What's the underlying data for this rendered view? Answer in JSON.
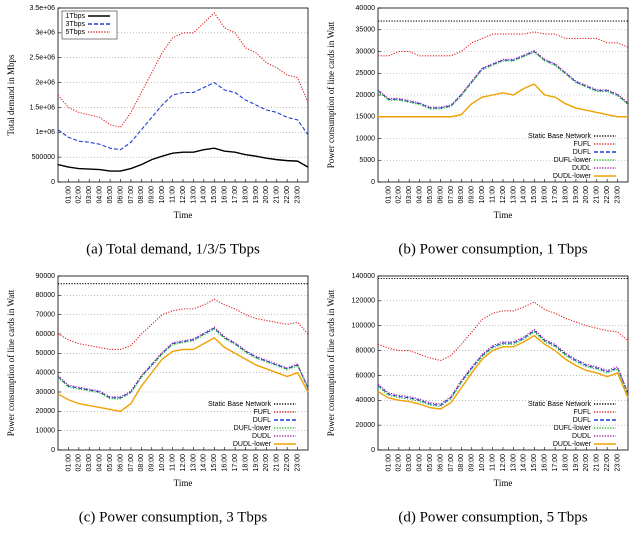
{
  "chart_data": [
    {
      "type": "line",
      "caption": "(a) Total demand, 1/3/5 Tbps",
      "xlabel": "Time",
      "ylabel": "Total demand in Mbps",
      "categories": [
        null,
        "01:00",
        "02:00",
        "03:00",
        "04:00",
        "05:00",
        "06:00",
        "07:00",
        "08:00",
        "09:00",
        "10:00",
        "11:00",
        "12:00",
        "13:00",
        "14:00",
        "15:00",
        "16:00",
        "17:00",
        "18:00",
        "19:00",
        "20:00",
        "21:00",
        "22:00",
        "23:00",
        null
      ],
      "ylim": [
        0,
        3500000
      ],
      "yticks": [
        0,
        500000,
        {
          "value": 1000000,
          "label": "1e+06"
        },
        {
          "value": 1500000,
          "label": "1.5e+06"
        },
        {
          "value": 2000000,
          "label": "2e+06"
        },
        {
          "value": 2500000,
          "label": "2.5e+06"
        },
        {
          "value": 3000000,
          "label": "3e+06"
        },
        {
          "value": 3500000,
          "label": "3.5e+06"
        }
      ],
      "grid": true,
      "legend": "upper left",
      "series": [
        {
          "name": "1Tbps",
          "color": "#000000",
          "dash": "solid",
          "values": [
            350000,
            300000,
            270000,
            260000,
            250000,
            220000,
            220000,
            270000,
            350000,
            450000,
            520000,
            580000,
            600000,
            600000,
            650000,
            680000,
            620000,
            600000,
            550000,
            520000,
            480000,
            450000,
            430000,
            420000,
            300000
          ]
        },
        {
          "name": "3Tbps",
          "color": "#1f3fd6",
          "dash": "dashed",
          "values": [
            1050000,
            900000,
            820000,
            800000,
            760000,
            680000,
            650000,
            800000,
            1050000,
            1300000,
            1550000,
            1750000,
            1800000,
            1800000,
            1900000,
            2000000,
            1850000,
            1800000,
            1650000,
            1550000,
            1450000,
            1400000,
            1300000,
            1250000,
            950000
          ]
        },
        {
          "name": "5Tbps",
          "color": "#e02020",
          "dash": "dotted",
          "values": [
            1750000,
            1500000,
            1400000,
            1350000,
            1300000,
            1150000,
            1100000,
            1400000,
            1800000,
            2200000,
            2600000,
            2900000,
            3000000,
            3000000,
            3200000,
            3400000,
            3100000,
            3000000,
            2700000,
            2600000,
            2400000,
            2300000,
            2150000,
            2100000,
            1600000
          ]
        }
      ]
    },
    {
      "type": "line",
      "caption": "(b) Power consumption, 1 Tbps",
      "xlabel": "Time",
      "ylabel": "Power consumption of line cards in Watt",
      "categories": [
        null,
        "01:00",
        "02:00",
        "03:00",
        "04:00",
        "05:00",
        "06:00",
        "07:00",
        "08:00",
        "09:00",
        "10:00",
        "11:00",
        "12:00",
        "13:00",
        "14:00",
        "15:00",
        "16:00",
        "17:00",
        "18:00",
        "19:00",
        "20:00",
        "21:00",
        "22:00",
        "23:00",
        null
      ],
      "ylim": [
        0,
        40000
      ],
      "yticks": [
        0,
        5000,
        10000,
        15000,
        20000,
        25000,
        30000,
        35000,
        40000
      ],
      "grid": true,
      "legend": "lower right",
      "series": [
        {
          "name": "Static Base Network",
          "color": "#000000",
          "dash": "dotted",
          "values": [
            37000,
            37000,
            37000,
            37000,
            37000,
            37000,
            37000,
            37000,
            37000,
            37000,
            37000,
            37000,
            37000,
            37000,
            37000,
            37000,
            37000,
            37000,
            37000,
            37000,
            37000,
            37000,
            37000,
            37000,
            37000
          ]
        },
        {
          "name": "FUFL",
          "color": "#e02020",
          "dash": "dotted",
          "values": [
            29000,
            29000,
            30000,
            30000,
            29000,
            29000,
            29000,
            29000,
            30000,
            32000,
            33000,
            34000,
            34000,
            34000,
            34000,
            34500,
            34000,
            34000,
            33000,
            33000,
            33000,
            33000,
            32000,
            32000,
            31000
          ]
        },
        {
          "name": "DUFL",
          "color": "#1f3fd6",
          "dash": "dashed",
          "values": [
            21000,
            19000,
            19000,
            18500,
            18000,
            17000,
            17000,
            17500,
            20000,
            23000,
            26000,
            27000,
            28000,
            28000,
            29000,
            30000,
            28000,
            27000,
            25000,
            23000,
            22000,
            21000,
            21000,
            20000,
            18000
          ]
        },
        {
          "name": "DUFL-lower",
          "color": "#20c020",
          "dash": "dotted",
          "values": [
            20800,
            18800,
            18800,
            18300,
            17800,
            16800,
            16800,
            17300,
            19800,
            22800,
            25800,
            26800,
            27800,
            27800,
            28800,
            29800,
            27800,
            26800,
            24800,
            22800,
            21800,
            20800,
            20800,
            19800,
            17800
          ]
        },
        {
          "name": "DUDL",
          "color": "#a020a0",
          "dash": "dotted",
          "values": [
            21200,
            19200,
            19200,
            18700,
            18200,
            17200,
            17200,
            17700,
            20200,
            23200,
            26200,
            27200,
            28200,
            28200,
            29200,
            30200,
            28200,
            27200,
            25200,
            23200,
            22200,
            21200,
            21200,
            20200,
            18200
          ]
        },
        {
          "name": "DUDL-lower",
          "color": "#f0a000",
          "dash": "solid",
          "values": [
            15000,
            15000,
            15000,
            15000,
            15000,
            15000,
            15000,
            15000,
            15500,
            18000,
            19500,
            20000,
            20500,
            20000,
            21500,
            22500,
            20000,
            19500,
            18000,
            17000,
            16500,
            16000,
            15500,
            15000,
            15000
          ]
        }
      ]
    },
    {
      "type": "line",
      "caption": "(c) Power consumption, 3 Tbps",
      "xlabel": "Time",
      "ylabel": "Power consumption of line cards in Watt",
      "categories": [
        null,
        "01:00",
        "02:00",
        "03:00",
        "04:00",
        "05:00",
        "06:00",
        "07:00",
        "08:00",
        "09:00",
        "10:00",
        "11:00",
        "12:00",
        "13:00",
        "14:00",
        "15:00",
        "16:00",
        "17:00",
        "18:00",
        "19:00",
        "20:00",
        "21:00",
        "22:00",
        "23:00",
        null
      ],
      "ylim": [
        0,
        90000
      ],
      "yticks": [
        0,
        10000,
        20000,
        30000,
        40000,
        50000,
        60000,
        70000,
        80000,
        90000
      ],
      "grid": true,
      "legend": "lower right",
      "series": [
        {
          "name": "Static Base Network",
          "color": "#000000",
          "dash": "dotted",
          "values": [
            86000,
            86000,
            86000,
            86000,
            86000,
            86000,
            86000,
            86000,
            86000,
            86000,
            86000,
            86000,
            86000,
            86000,
            86000,
            86000,
            86000,
            86000,
            86000,
            86000,
            86000,
            86000,
            86000,
            86000,
            86000
          ]
        },
        {
          "name": "FUFL",
          "color": "#e02020",
          "dash": "dotted",
          "values": [
            60000,
            57000,
            55000,
            54000,
            53000,
            52000,
            52000,
            54000,
            60000,
            65000,
            70000,
            72000,
            73000,
            73000,
            75000,
            78000,
            75000,
            73000,
            70000,
            68000,
            67000,
            66000,
            65000,
            66000,
            60000
          ]
        },
        {
          "name": "DUFL",
          "color": "#1f3fd6",
          "dash": "dashed",
          "values": [
            38000,
            33000,
            32000,
            31000,
            30000,
            27000,
            27000,
            30000,
            38000,
            44000,
            50000,
            55000,
            56000,
            57000,
            60000,
            63000,
            58000,
            55000,
            51000,
            48000,
            46000,
            44000,
            42000,
            44000,
            32000
          ]
        },
        {
          "name": "DUFL-lower",
          "color": "#20c020",
          "dash": "dotted",
          "values": [
            37500,
            32500,
            31500,
            30500,
            29500,
            26500,
            26500,
            29500,
            37500,
            43500,
            49500,
            54500,
            55500,
            56500,
            59500,
            62500,
            57500,
            54500,
            50500,
            47500,
            45500,
            43500,
            41500,
            43500,
            31500
          ]
        },
        {
          "name": "DUDL",
          "color": "#a020a0",
          "dash": "dotted",
          "values": [
            38500,
            33500,
            32500,
            31500,
            30500,
            27500,
            27500,
            30500,
            38500,
            44500,
            50500,
            55500,
            56500,
            57500,
            60500,
            63500,
            58500,
            55500,
            51500,
            48500,
            46500,
            44500,
            42500,
            44500,
            32500
          ]
        },
        {
          "name": "DUDL-lower",
          "color": "#f0a000",
          "dash": "solid",
          "values": [
            29000,
            26000,
            24000,
            23000,
            22000,
            21000,
            20000,
            24000,
            33000,
            40000,
            47000,
            51000,
            52000,
            52000,
            55000,
            58000,
            53000,
            50000,
            47000,
            44000,
            42000,
            40000,
            38000,
            40000,
            30000
          ]
        }
      ]
    },
    {
      "type": "line",
      "caption": "(d) Power consumption, 5 Tbps",
      "xlabel": "Time",
      "ylabel": "Power consumption of line cards in Watt",
      "categories": [
        null,
        "01:00",
        "02:00",
        "03:00",
        "04:00",
        "05:00",
        "06:00",
        "07:00",
        "08:00",
        "09:00",
        "10:00",
        "11:00",
        "12:00",
        "13:00",
        "14:00",
        "15:00",
        "16:00",
        "17:00",
        "18:00",
        "19:00",
        "20:00",
        "21:00",
        "22:00",
        "23:00",
        null
      ],
      "ylim": [
        0,
        140000
      ],
      "yticks": [
        0,
        20000,
        40000,
        60000,
        80000,
        100000,
        120000,
        140000
      ],
      "grid": true,
      "legend": "lower right",
      "series": [
        {
          "name": "Static Base Network",
          "color": "#000000",
          "dash": "dotted",
          "values": [
            138000,
            138000,
            138000,
            138000,
            138000,
            138000,
            138000,
            138000,
            138000,
            138000,
            138000,
            138000,
            138000,
            138000,
            138000,
            138000,
            138000,
            138000,
            138000,
            138000,
            138000,
            138000,
            138000,
            138000,
            138000
          ]
        },
        {
          "name": "FUFL",
          "color": "#e02020",
          "dash": "dotted",
          "values": [
            85000,
            82000,
            80000,
            80000,
            77000,
            74000,
            72000,
            76000,
            85000,
            95000,
            105000,
            110000,
            112000,
            112000,
            115000,
            119000,
            113000,
            110000,
            106000,
            103000,
            100000,
            98000,
            96000,
            95000,
            88000
          ]
        },
        {
          "name": "DUFL",
          "color": "#1f3fd6",
          "dash": "dashed",
          "values": [
            52000,
            45000,
            43000,
            42000,
            40000,
            37000,
            36000,
            42000,
            55000,
            66000,
            76000,
            83000,
            86000,
            86000,
            90000,
            96000,
            88000,
            84000,
            77000,
            72000,
            68000,
            66000,
            63000,
            66000,
            45000
          ]
        },
        {
          "name": "DUFL-lower",
          "color": "#20c020",
          "dash": "dotted",
          "values": [
            51000,
            44000,
            42000,
            41000,
            39000,
            36000,
            35000,
            41000,
            54000,
            65000,
            75000,
            82000,
            85000,
            85000,
            89000,
            95000,
            87000,
            83000,
            76000,
            71000,
            67000,
            65000,
            62000,
            65000,
            44000
          ]
        },
        {
          "name": "DUDL",
          "color": "#a020a0",
          "dash": "dotted",
          "values": [
            53000,
            46000,
            44000,
            43000,
            41000,
            38000,
            37000,
            43000,
            56000,
            67000,
            77000,
            84000,
            87000,
            87000,
            91000,
            97000,
            89000,
            85000,
            78000,
            73000,
            69000,
            67000,
            64000,
            67000,
            46000
          ]
        },
        {
          "name": "DUDL-lower",
          "color": "#f0a000",
          "dash": "solid",
          "values": [
            47000,
            42000,
            40000,
            39000,
            37000,
            34000,
            33000,
            38000,
            50000,
            62000,
            73000,
            80000,
            83000,
            83000,
            87000,
            92000,
            85000,
            80000,
            73000,
            68000,
            64000,
            62000,
            59000,
            62000,
            42000
          ]
        }
      ]
    }
  ]
}
